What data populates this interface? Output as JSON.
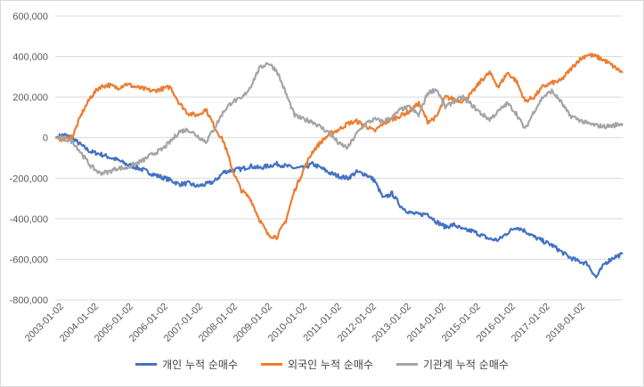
{
  "chart_data": {
    "type": "line",
    "title": "",
    "xlabel": "",
    "ylabel": "",
    "ylim": [
      -800000,
      600000
    ],
    "yticks": [
      600000,
      400000,
      200000,
      0,
      -200000,
      -400000,
      -600000,
      -800000
    ],
    "ytick_labels": [
      "600,000",
      "400,000",
      "200,000",
      "0",
      "-200,000",
      "-400,000",
      "-600,000",
      "-800,000"
    ],
    "xtick_labels": [
      "2003-01-02",
      "2004-01-02",
      "2005-01-02",
      "2006-01-02",
      "2007-01-02",
      "2008-01-02",
      "2009-01-02",
      "2010-01-02",
      "2011-01-02",
      "2012-01-02",
      "2013-01-02",
      "2014-01-02",
      "2015-01-02",
      "2016-01-02",
      "2017-01-02",
      "2018-01-02"
    ],
    "x_start": 2003.0,
    "x_end": 2019.0,
    "grid": "horizontal",
    "legend_position": "bottom",
    "series": [
      {
        "name": "개인 누적 순매수",
        "color": "#4472c4",
        "x": [
          2003.0,
          2003.25,
          2003.5,
          2003.75,
          2004.0,
          2004.25,
          2004.5,
          2004.75,
          2005.0,
          2005.25,
          2005.5,
          2005.75,
          2006.0,
          2006.25,
          2006.5,
          2006.75,
          2007.0,
          2007.25,
          2007.5,
          2007.75,
          2008.0,
          2008.25,
          2008.5,
          2008.75,
          2009.0,
          2009.25,
          2009.5,
          2009.75,
          2010.0,
          2010.25,
          2010.5,
          2010.75,
          2011.0,
          2011.25,
          2011.5,
          2011.75,
          2012.0,
          2012.25,
          2012.5,
          2012.75,
          2013.0,
          2013.25,
          2013.5,
          2013.75,
          2014.0,
          2014.25,
          2014.5,
          2014.75,
          2015.0,
          2015.25,
          2015.5,
          2015.75,
          2016.0,
          2016.25,
          2016.5,
          2016.75,
          2017.0,
          2017.25,
          2017.5,
          2017.75,
          2018.0,
          2018.25,
          2018.5,
          2018.75,
          2019.0
        ],
        "values": [
          0,
          15000,
          -5000,
          -40000,
          -70000,
          -80000,
          -95000,
          -110000,
          -130000,
          -145000,
          -160000,
          -180000,
          -195000,
          -210000,
          -230000,
          -225000,
          -240000,
          -230000,
          -215000,
          -170000,
          -160000,
          -155000,
          -140000,
          -150000,
          -140000,
          -130000,
          -140000,
          -150000,
          -150000,
          -130000,
          -150000,
          -175000,
          -190000,
          -200000,
          -170000,
          -180000,
          -210000,
          -300000,
          -275000,
          -340000,
          -370000,
          -380000,
          -375000,
          -415000,
          -440000,
          -430000,
          -455000,
          -460000,
          -480000,
          -500000,
          -505000,
          -470000,
          -440000,
          -460000,
          -490000,
          -510000,
          -530000,
          -560000,
          -590000,
          -610000,
          -620000,
          -690000,
          -620000,
          -590000,
          -575000
        ]
      },
      {
        "name": "외국인 누적 순매수",
        "color": "#ed7d31",
        "x": [
          2003.0,
          2003.25,
          2003.5,
          2003.75,
          2004.0,
          2004.25,
          2004.5,
          2004.75,
          2005.0,
          2005.25,
          2005.5,
          2005.75,
          2006.0,
          2006.25,
          2006.5,
          2006.75,
          2007.0,
          2007.25,
          2007.5,
          2007.75,
          2008.0,
          2008.25,
          2008.5,
          2008.75,
          2009.0,
          2009.25,
          2009.5,
          2009.75,
          2010.0,
          2010.25,
          2010.5,
          2010.75,
          2011.0,
          2011.25,
          2011.5,
          2011.75,
          2012.0,
          2012.25,
          2012.5,
          2012.75,
          2013.0,
          2013.25,
          2013.5,
          2013.75,
          2014.0,
          2014.25,
          2014.5,
          2014.75,
          2015.0,
          2015.25,
          2015.5,
          2015.75,
          2016.0,
          2016.25,
          2016.5,
          2016.75,
          2017.0,
          2017.25,
          2017.5,
          2017.75,
          2018.0,
          2018.25,
          2018.5,
          2018.75,
          2019.0
        ],
        "values": [
          0,
          -10000,
          10000,
          120000,
          200000,
          250000,
          260000,
          245000,
          265000,
          250000,
          240000,
          230000,
          240000,
          250000,
          170000,
          120000,
          110000,
          140000,
          50000,
          -20000,
          -160000,
          -260000,
          -300000,
          -400000,
          -480000,
          -490000,
          -410000,
          -260000,
          -160000,
          -70000,
          -20000,
          20000,
          40000,
          70000,
          80000,
          60000,
          30000,
          70000,
          90000,
          110000,
          130000,
          170000,
          80000,
          100000,
          200000,
          190000,
          180000,
          220000,
          280000,
          320000,
          250000,
          320000,
          280000,
          180000,
          200000,
          250000,
          270000,
          280000,
          330000,
          380000,
          410000,
          400000,
          380000,
          350000,
          320000
        ]
      },
      {
        "name": "기관계 누적 순매수",
        "color": "#a5a5a5",
        "x": [
          2003.0,
          2003.25,
          2003.5,
          2003.75,
          2004.0,
          2004.25,
          2004.5,
          2004.75,
          2005.0,
          2005.25,
          2005.5,
          2005.75,
          2006.0,
          2006.25,
          2006.5,
          2006.75,
          2007.0,
          2007.25,
          2007.5,
          2007.75,
          2008.0,
          2008.25,
          2008.5,
          2008.75,
          2009.0,
          2009.25,
          2009.5,
          2009.75,
          2010.0,
          2010.25,
          2010.5,
          2010.75,
          2011.0,
          2011.25,
          2011.5,
          2011.75,
          2012.0,
          2012.25,
          2012.5,
          2012.75,
          2013.0,
          2013.25,
          2013.5,
          2013.75,
          2014.0,
          2014.25,
          2014.5,
          2014.75,
          2015.0,
          2015.25,
          2015.5,
          2015.75,
          2016.0,
          2016.25,
          2016.5,
          2016.75,
          2017.0,
          2017.25,
          2017.5,
          2017.75,
          2018.0,
          2018.25,
          2018.5,
          2018.75,
          2019.0
        ],
        "values": [
          0,
          -5000,
          -20000,
          -80000,
          -140000,
          -175000,
          -170000,
          -150000,
          -150000,
          -130000,
          -110000,
          -80000,
          -60000,
          -20000,
          30000,
          40000,
          10000,
          -20000,
          50000,
          130000,
          180000,
          190000,
          250000,
          340000,
          370000,
          330000,
          220000,
          110000,
          90000,
          80000,
          50000,
          20000,
          -30000,
          -50000,
          20000,
          70000,
          90000,
          80000,
          100000,
          140000,
          150000,
          110000,
          220000,
          240000,
          150000,
          180000,
          200000,
          160000,
          120000,
          90000,
          130000,
          170000,
          120000,
          40000,
          130000,
          200000,
          230000,
          180000,
          110000,
          90000,
          70000,
          60000,
          55000,
          60000,
          70000
        ]
      }
    ]
  }
}
